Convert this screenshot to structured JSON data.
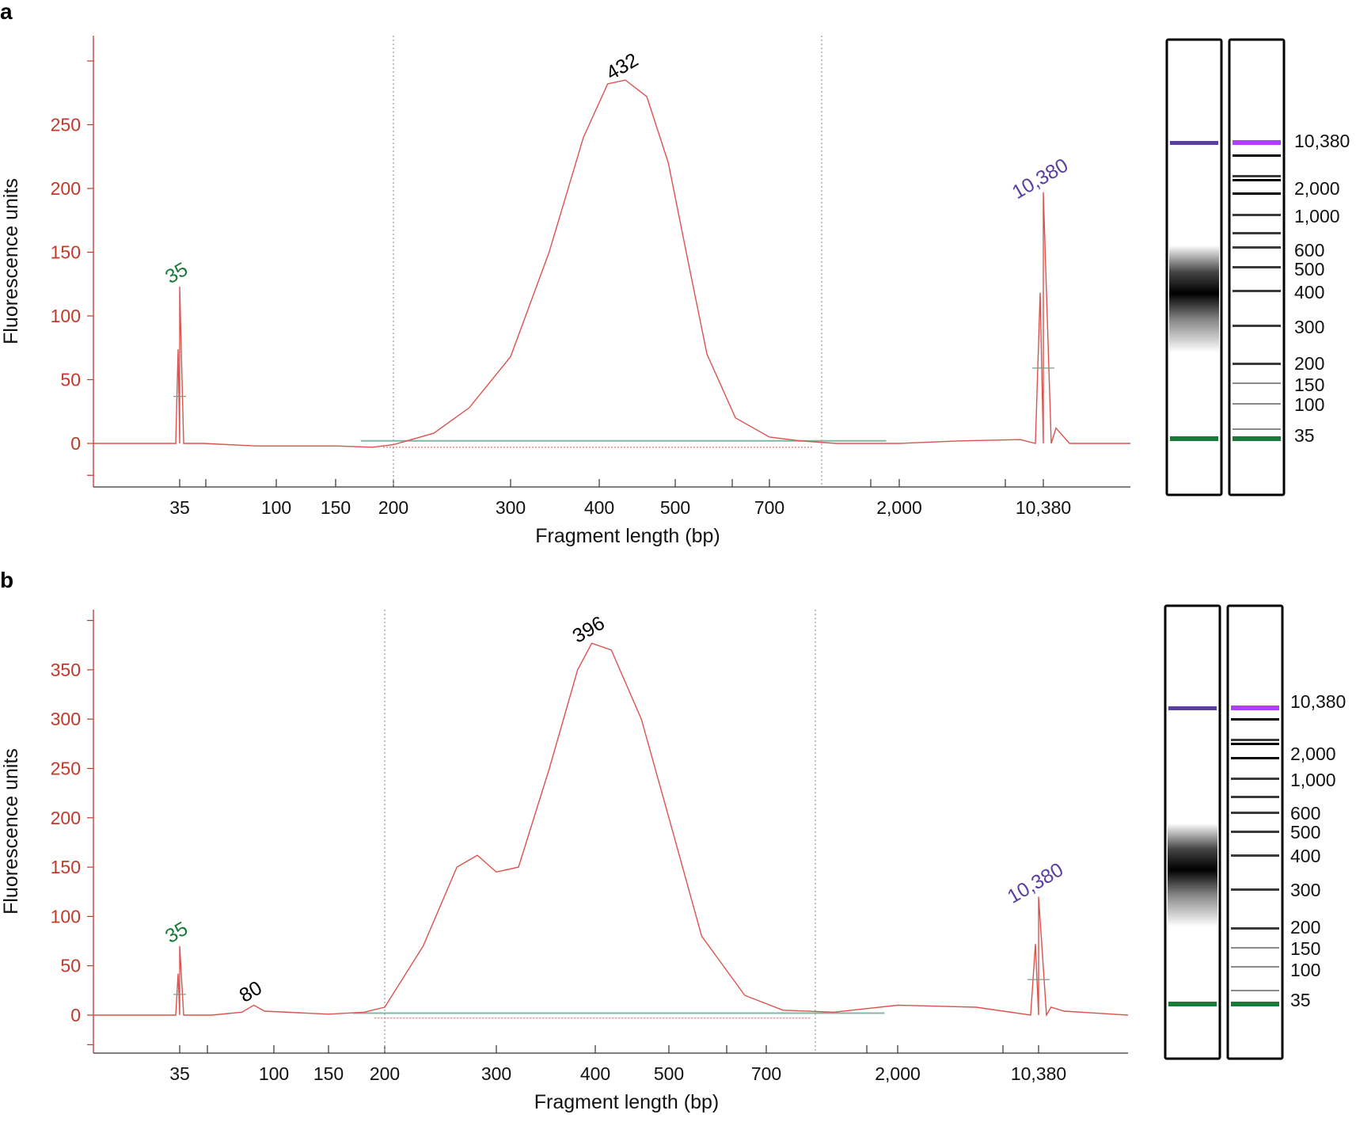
{
  "colors": {
    "trace": "#d9534f",
    "axis": "#c0392b",
    "marker_lower": "#1a7a3a",
    "marker_upper": "#5b3fa0",
    "ladder_upper": "#b23cff",
    "baseline_region": "#7fb8a6"
  },
  "chart_data": [
    {
      "panel": "a",
      "type": "line",
      "xlabel": "Fragment length (bp)",
      "ylabel": "Fluorescence units",
      "x_scale": "log (electropherogram sizing)",
      "x_tick_labels": [
        "35",
        "100",
        "150",
        "200",
        "300",
        "400",
        "500",
        "700",
        "2,000",
        "10,380"
      ],
      "y_ticks": [
        "0",
        "50",
        "100",
        "150",
        "200",
        "250"
      ],
      "ylim": [
        -30,
        300
      ],
      "series": [
        {
          "x": [
            35,
            45,
            80,
            150,
            180,
            200,
            230,
            260,
            300,
            340,
            380,
            410,
            432,
            460,
            490,
            520,
            560,
            620,
            700,
            900,
            1200,
            2000,
            4000,
            8000,
            10380,
            12000,
            14000
          ],
          "y": [
            0,
            0,
            -2,
            -2,
            -3,
            -1,
            8,
            28,
            68,
            150,
            240,
            282,
            285,
            272,
            220,
            150,
            70,
            20,
            5,
            2,
            0,
            0,
            2,
            3,
            0,
            12,
            0
          ]
        }
      ],
      "peaks": [
        {
          "label": "35",
          "x": 35,
          "y": 123,
          "color": "marker_lower"
        },
        {
          "label": "432",
          "x": 432,
          "y": 285,
          "color": "black"
        },
        {
          "label": "10,380",
          "x": 10380,
          "y": 197,
          "color": "marker_upper"
        }
      ],
      "gel_ladder_labels": [
        "10,380",
        "2,000",
        "1,000",
        "600",
        "500",
        "400",
        "300",
        "200",
        "150",
        "100",
        "35"
      ]
    },
    {
      "panel": "b",
      "type": "line",
      "xlabel": "Fragment length (bp)",
      "ylabel": "Fluorescence units",
      "x_scale": "log (electropherogram sizing)",
      "x_tick_labels": [
        "35",
        "100",
        "150",
        "200",
        "300",
        "400",
        "500",
        "700",
        "2,000",
        "10,380"
      ],
      "y_ticks": [
        "0",
        "50",
        "100",
        "150",
        "200",
        "250",
        "300",
        "350"
      ],
      "ylim": [
        -35,
        400
      ],
      "series": [
        {
          "x": [
            35,
            50,
            70,
            80,
            90,
            150,
            180,
            200,
            230,
            260,
            280,
            300,
            320,
            350,
            380,
            396,
            420,
            460,
            500,
            560,
            650,
            800,
            1200,
            2000,
            5000,
            10380,
            12000,
            14000
          ],
          "y": [
            0,
            0,
            3,
            10,
            4,
            1,
            3,
            8,
            70,
            150,
            162,
            145,
            150,
            250,
            350,
            377,
            370,
            300,
            200,
            80,
            20,
            5,
            3,
            10,
            8,
            0,
            8,
            4
          ]
        }
      ],
      "peaks": [
        {
          "label": "35",
          "x": 35,
          "y": 70,
          "color": "marker_lower"
        },
        {
          "label": "80",
          "x": 80,
          "y": 10,
          "color": "black"
        },
        {
          "label": "396",
          "x": 396,
          "y": 377,
          "color": "black"
        },
        {
          "label": "10,380",
          "x": 10380,
          "y": 120,
          "color": "marker_upper"
        }
      ],
      "gel_ladder_labels": [
        "10,380",
        "2,000",
        "1,000",
        "600",
        "500",
        "400",
        "300",
        "200",
        "150",
        "100",
        "35"
      ]
    }
  ]
}
